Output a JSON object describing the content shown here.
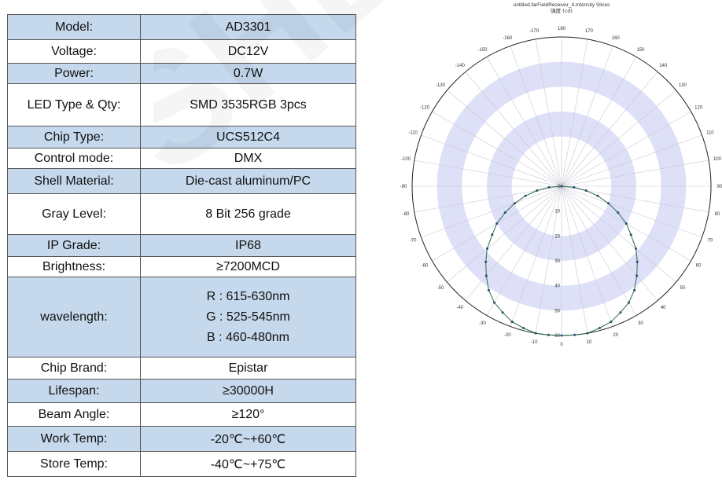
{
  "spec_table": {
    "rows": [
      {
        "label": "Model:",
        "value": "AD3301",
        "shaded": true
      },
      {
        "label": "Voltage:",
        "value": "DC12V",
        "shaded": false
      },
      {
        "label": "Power:",
        "value": "0.7W",
        "shaded": true
      },
      {
        "label": "LED Type & Qty:",
        "value": "SMD 3535RGB 3pcs",
        "shaded": false
      },
      {
        "label": "Chip Type:",
        "value": "UCS512C4",
        "shaded": true
      },
      {
        "label": "Control mode:",
        "value": "DMX",
        "shaded": false
      },
      {
        "label": "Shell Material:",
        "value": "Die-cast aluminum/PC",
        "shaded": true
      },
      {
        "label": "Gray Level:",
        "value": "8 Bit 256 grade",
        "shaded": false
      },
      {
        "label": "IP Grade:",
        "value": "IP68",
        "shaded": true
      },
      {
        "label": "Brightness:",
        "value": "≥7200MCD",
        "shaded": false
      },
      {
        "label": "wavelength:",
        "values": [
          "R : 615-630nm",
          "G : 525-545nm",
          "B : 460-480nm"
        ],
        "shaded": true
      },
      {
        "label": "Chip Brand:",
        "value": "Epistar",
        "shaded": false
      },
      {
        "label": "Lifespan:",
        "value": "≥30000H",
        "shaded": true
      },
      {
        "label": "Beam Angle:",
        "value": "≥120°",
        "shaded": false
      },
      {
        "label": "Work Temp:",
        "value": "-20℃~+60℃",
        "shaded": true
      },
      {
        "label": "Store Temp:",
        "value": "-40℃~+75℃",
        "shaded": false
      }
    ]
  },
  "chart_data": {
    "type": "polar-line",
    "title": "untitled.farFieldReceiver_4.Intensity Slices",
    "subtitle": "强度 (cd)",
    "radial_range": [
      0,
      60
    ],
    "radial_ticks": [
      "0",
      "10",
      "20",
      "30",
      "40",
      "50",
      "60"
    ],
    "angle_tick_labels": [
      "180",
      "170",
      "160",
      "150",
      "140",
      "130",
      "120",
      "110",
      "100",
      "90",
      "80",
      "70",
      "60",
      "50",
      "40",
      "30",
      "20",
      "10",
      "0",
      "-10",
      "-20",
      "-30",
      "-40",
      "-50",
      "-60",
      "-70",
      "-80",
      "-90",
      "-100",
      "-110",
      "-120",
      "-130",
      "-140",
      "-150",
      "-160",
      "-170"
    ],
    "bands": "alternating light blue rings",
    "series": [
      {
        "color": "#2e6b4e",
        "theta_deg": [
          -90,
          -85,
          -80,
          -75,
          -70,
          -65,
          -60,
          -55,
          -50,
          -45,
          -40,
          -35,
          -30,
          -25,
          -20,
          -15,
          -10,
          -5,
          0,
          5,
          10,
          15,
          20,
          25,
          30,
          35,
          40,
          45,
          50,
          55,
          60,
          65,
          70,
          75,
          80,
          85,
          90
        ],
        "r": [
          0,
          5,
          10,
          15,
          20,
          25,
          30,
          34,
          39,
          43,
          47,
          51,
          54,
          56,
          58,
          59,
          60,
          60,
          60,
          60,
          60,
          59,
          58,
          56,
          54,
          51,
          47,
          43,
          39,
          34,
          30,
          25,
          20,
          15,
          10,
          5,
          0
        ]
      }
    ]
  },
  "watermark": {
    "text": "SHE"
  }
}
